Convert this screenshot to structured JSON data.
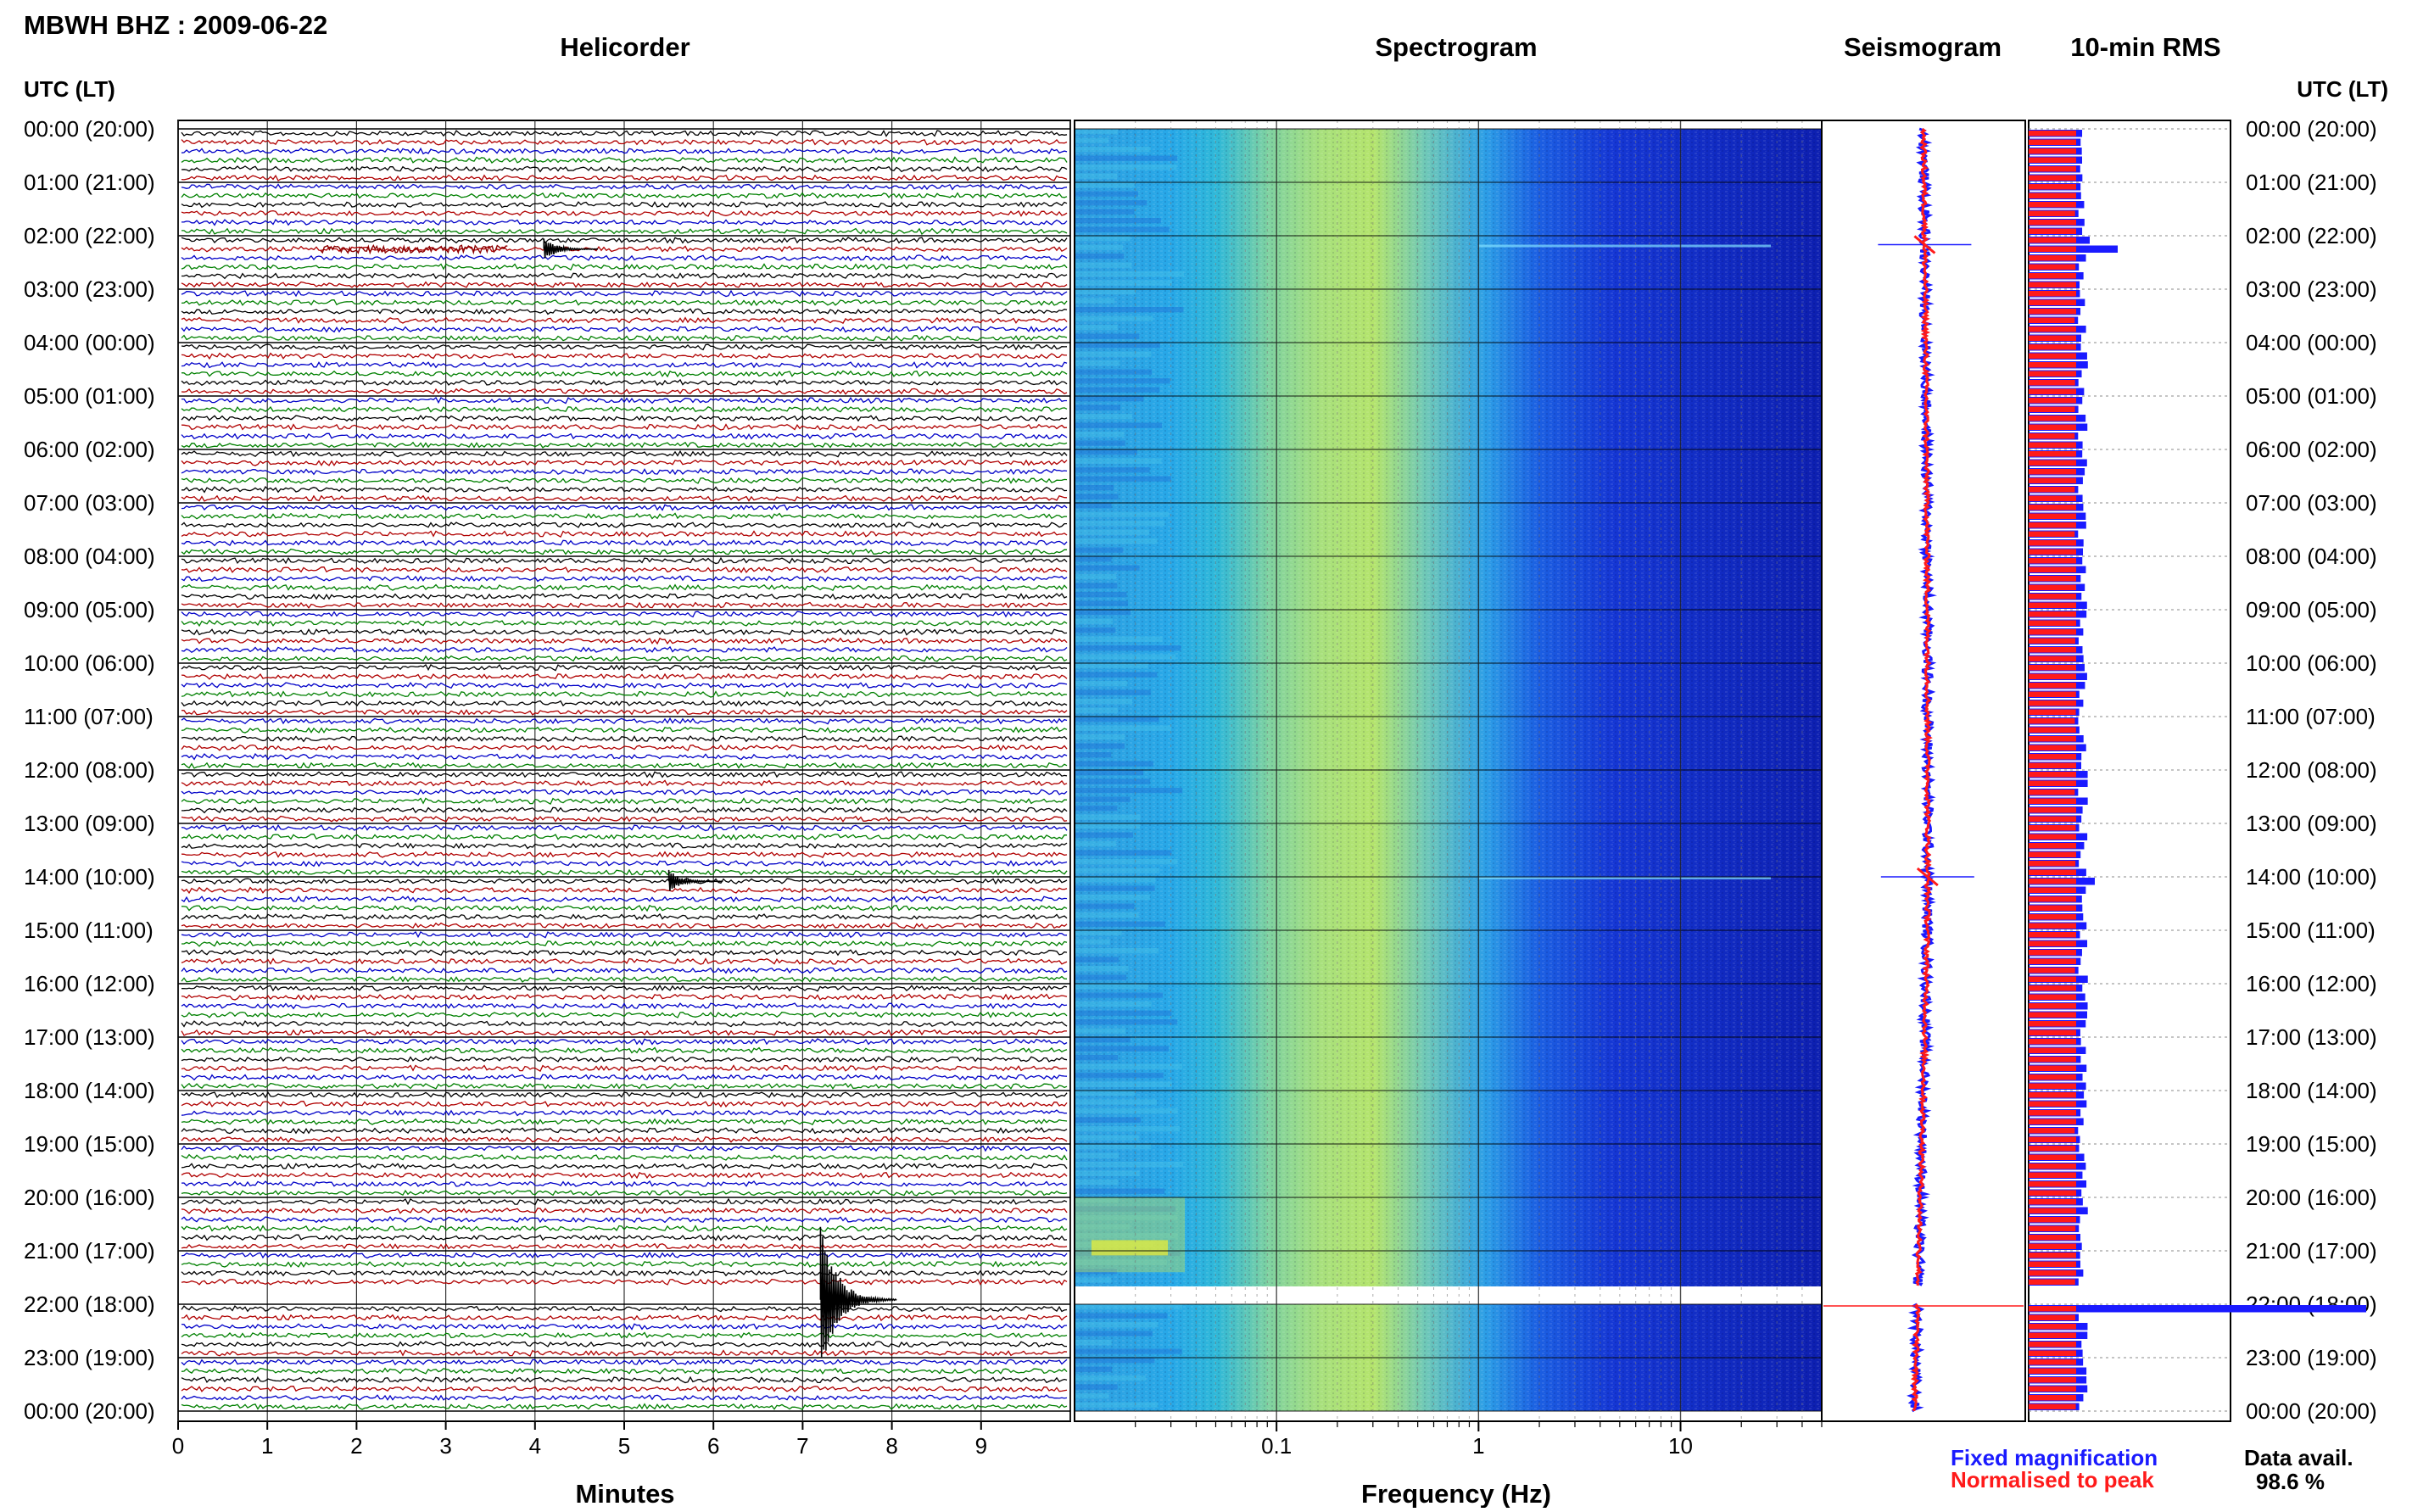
{
  "station_title": "MBWH BHZ : 2009-06-22",
  "panels": {
    "helicorder": "Helicorder",
    "spectrogram": "Spectrogram",
    "seismogram": "Seismogram",
    "rms": "10-min RMS"
  },
  "axis_header_left": "UTC (LT)",
  "axis_header_right": "UTC (LT)",
  "time_labels": [
    "00:00 (20:00)",
    "01:00 (21:00)",
    "02:00 (22:00)",
    "03:00 (23:00)",
    "04:00 (00:00)",
    "05:00 (01:00)",
    "06:00 (02:00)",
    "07:00 (03:00)",
    "08:00 (04:00)",
    "09:00 (05:00)",
    "10:00 (06:00)",
    "11:00 (07:00)",
    "12:00 (08:00)",
    "13:00 (09:00)",
    "14:00 (10:00)",
    "15:00 (11:00)",
    "16:00 (12:00)",
    "17:00 (13:00)",
    "18:00 (14:00)",
    "19:00 (15:00)",
    "20:00 (16:00)",
    "21:00 (17:00)",
    "22:00 (18:00)",
    "23:00 (19:00)",
    "00:00 (20:00)"
  ],
  "helicorder_x": {
    "label": "Minutes",
    "ticks": [
      0,
      1,
      2,
      3,
      4,
      5,
      6,
      7,
      8,
      9
    ],
    "range": [
      0,
      10
    ]
  },
  "spectrogram_x": {
    "label": "Frequency (Hz)",
    "scale": "log",
    "tick_labels": [
      "0.1",
      "1",
      "10"
    ],
    "range": [
      0.01,
      50
    ]
  },
  "legend": {
    "fixed": "Fixed magnification",
    "normalised": "Normalised to peak",
    "fixed_color": "#1a1aff",
    "normalised_color": "#ff1a1a"
  },
  "data_availability": {
    "label": "Data avail.",
    "value": "98.6 %"
  },
  "trace_colors": [
    "#000000",
    "#b00000",
    "#0000c8",
    "#008000"
  ],
  "chart_data": [
    {
      "type": "line",
      "name": "helicorder",
      "xlabel": "Minutes",
      "xlim": [
        0,
        10
      ],
      "rows": 144,
      "row_minutes": 10,
      "events": [
        {
          "time_utc": "02:10",
          "minute": 4.1
        },
        {
          "time_utc": "14:00",
          "minute": 5.5
        },
        {
          "time_utc": "21:50",
          "minute": 7.2
        }
      ],
      "gap": {
        "start_utc": "21:40",
        "end_utc": "22:00"
      }
    },
    {
      "type": "heatmap",
      "name": "spectrogram",
      "xlabel": "Frequency (Hz)",
      "xscale": "log",
      "xlim": [
        0.01,
        50
      ],
      "gap": {
        "start_utc": "21:40",
        "end_utc": "22:00"
      }
    },
    {
      "type": "line",
      "name": "seismogram"
    },
    {
      "type": "bar",
      "name": "10-min RMS",
      "orientation": "horizontal",
      "bin_minutes": 10,
      "peaks_utc": [
        "02:10",
        "14:00",
        "22:00"
      ]
    }
  ]
}
